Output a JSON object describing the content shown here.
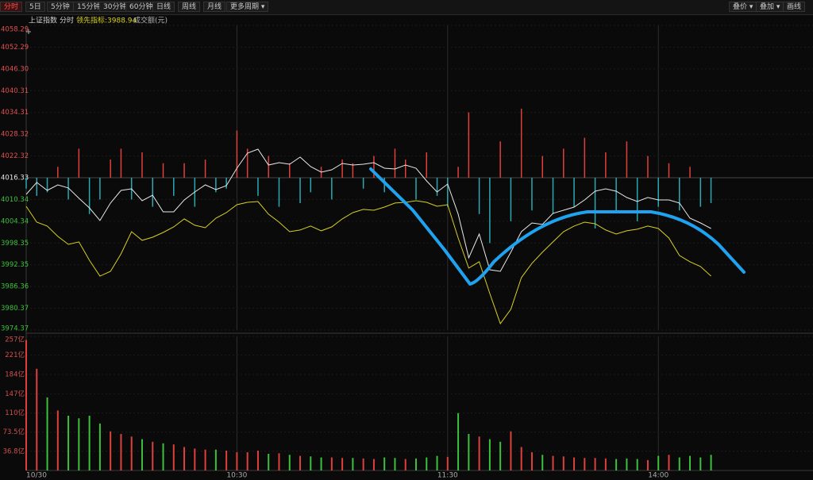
{
  "toolbar": {
    "left": [
      "分时",
      "5日",
      "5分钟",
      "15分钟",
      "30分钟",
      "60分钟",
      "日线",
      "周线",
      "月线",
      "更多周期 ▾"
    ],
    "right": [
      "叠价 ▾",
      "叠加 ▾",
      "画线"
    ]
  },
  "info": {
    "index": "上证指数",
    "mode": "分时",
    "indicator": "领先指标:3988.94",
    "amount": "成交额(元)"
  },
  "chart_data": [
    {
      "type": "line",
      "x": [
        0,
        3,
        6,
        9,
        12,
        15,
        18,
        21,
        24,
        27,
        30,
        33,
        36,
        39,
        42,
        45,
        48,
        51,
        54,
        57,
        60,
        63,
        66,
        69,
        72,
        75,
        78,
        81,
        84,
        87,
        90,
        93,
        96,
        99,
        102,
        105,
        108,
        111,
        114,
        117,
        120,
        123,
        126,
        129,
        132,
        135,
        138,
        141,
        144,
        147,
        150,
        153,
        156,
        159,
        162,
        165,
        168,
        171,
        174,
        177,
        180,
        183,
        186,
        189,
        192,
        195
      ],
      "series": [
        {
          "color": "#e8e8e8",
          "values": [
            4011.75,
            4015.03,
            4012.84,
            4014.37,
            4013.5,
            4010.66,
            4008.03,
            4004.54,
            4009.35,
            4012.84,
            4013.28,
            4010.0,
            4011.53,
            4006.94,
            4006.94,
            4010.22,
            4012.4,
            4014.37,
            4013.06,
            4014.15,
            4018.96,
            4023.11,
            4024.2,
            4019.83,
            4020.49,
            4020.05,
            4022.02,
            4019.4,
            4017.87,
            4018.52,
            4020.27,
            4019.83,
            4020.05,
            4020.49,
            4018.96,
            4018.74,
            4019.83,
            4018.96,
            4015.46,
            4012.4,
            4014.59,
            4006.29,
            3994.27,
            4000.82,
            3990.99,
            3990.55,
            3995.8,
            4001.48,
            4003.88,
            4003.45,
            4006.51,
            4007.38,
            4008.25,
            4010.22,
            4012.62,
            4013.28,
            4012.62,
            4010.88,
            4009.78,
            4010.88,
            4010.22,
            4010.22,
            4009.35,
            4005.19,
            4003.88,
            4002.35
          ]
        },
        {
          "color": "#d8d020",
          "values": [
            4008.47,
            4004.1,
            4003.01,
            4000.17,
            3997.98,
            3998.64,
            3993.61,
            3989.24,
            3990.55,
            3995.36,
            4001.48,
            3999.08,
            3999.95,
            4001.26,
            4002.79,
            4004.98,
            4003.23,
            4002.57,
            4005.19,
            4006.72,
            4008.91,
            4009.56,
            4009.78,
            4006.29,
            4004.1,
            4001.48,
            4001.92,
            4003.01,
            4001.7,
            4002.79,
            4004.98,
            4006.72,
            4007.6,
            4007.38,
            4008.25,
            4009.35,
            4009.56,
            4010.0,
            4009.56,
            4008.47,
            4008.91,
            3999.73,
            3991.43,
            3993.18,
            3984.44,
            3976.13,
            3980.07,
            3988.81,
            3992.74,
            3995.8,
            3998.64,
            4001.48,
            4003.01,
            4004.1,
            4003.66,
            4001.92,
            4000.82,
            4001.7,
            4002.14,
            4003.01,
            4002.35,
            3999.73,
            3994.92,
            3993.18,
            3991.87,
            3989.24
          ]
        }
      ],
      "bars": {
        "baseline": 4016.33,
        "values": [
          -3,
          -5,
          -4,
          3,
          -6,
          8,
          -10,
          -6,
          5,
          8,
          -6,
          7,
          -8,
          4,
          -5,
          4,
          -8,
          5,
          -4,
          -3,
          13,
          8,
          -5,
          6,
          -8,
          4,
          -7,
          -4,
          3,
          -6,
          5,
          4,
          -3,
          6,
          -4,
          8,
          5,
          -6,
          7,
          -5,
          -8,
          3,
          18,
          -10,
          -18,
          10,
          -12,
          19,
          -9,
          6,
          -10,
          8,
          -8,
          11,
          -14,
          7,
          -9,
          10,
          -12,
          6,
          -8,
          4,
          -9,
          3,
          -8,
          -7
        ]
      },
      "up_color": "#e0403c",
      "down_color": "#2aa9b4",
      "baseline_color": "#e8e8e8",
      "up_label_color": "#e05050",
      "down_label_color": "#3cc13c",
      "xlim": [
        0,
        222
      ],
      "ylim": [
        3974.37,
        4058.29
      ],
      "yticks": [
        4058.29,
        4052.29,
        {
          "value": 4046.3,
          "label": "4046.30"
        },
        4040.31,
        4034.31,
        4028.32,
        4022.32,
        4016.33,
        4010.34,
        4004.34,
        3998.35,
        3992.35,
        3986.36,
        3980.37,
        3974.37
      ],
      "grid": true
    },
    {
      "type": "bar",
      "x": [
        0,
        3,
        6,
        9,
        12,
        15,
        18,
        21,
        24,
        27,
        30,
        33,
        36,
        39,
        42,
        45,
        48,
        51,
        54,
        57,
        60,
        63,
        66,
        69,
        72,
        75,
        78,
        81,
        84,
        87,
        90,
        93,
        96,
        99,
        102,
        105,
        108,
        111,
        114,
        117,
        120,
        123,
        126,
        129,
        132,
        135,
        138,
        141,
        144,
        147,
        150,
        153,
        156,
        159,
        162,
        165,
        168,
        171,
        174,
        177,
        180,
        183,
        186,
        189,
        192,
        195
      ],
      "values": [
        250,
        195,
        140,
        115,
        105,
        100,
        105,
        90,
        75,
        70,
        65,
        60,
        55,
        52,
        50,
        45,
        42,
        40,
        40,
        38,
        35,
        35,
        38,
        32,
        33,
        30,
        28,
        27,
        25,
        25,
        24,
        24,
        23,
        22,
        25,
        24,
        22,
        23,
        25,
        28,
        26,
        110,
        70,
        65,
        60,
        55,
        75,
        45,
        35,
        30,
        28,
        27,
        25,
        24,
        24,
        23,
        22,
        23,
        22,
        20,
        28,
        30,
        25,
        28,
        25,
        30
      ],
      "up_color": "#e0403c",
      "down_color": "#3cc13c",
      "xlim": [
        0,
        222
      ],
      "ylim": [
        0,
        257
      ],
      "xticks": [
        {
          "value": 0,
          "label": "10/30"
        },
        {
          "value": 60,
          "label": "10:30"
        },
        {
          "value": 120,
          "label": "11:30"
        },
        {
          "value": 180,
          "label": "14:00"
        }
      ],
      "yticks": [
        {
          "value": 257,
          "label": "257亿"
        },
        {
          "value": 221,
          "label": "221亿"
        },
        {
          "value": 184,
          "label": "184亿"
        },
        {
          "value": 147,
          "label": "147亿"
        },
        {
          "value": 110,
          "label": "110亿"
        },
        {
          "value": 73.5,
          "label": "73.5亿"
        },
        {
          "value": 36.8,
          "label": "36.8亿"
        }
      ],
      "grid": true
    }
  ]
}
